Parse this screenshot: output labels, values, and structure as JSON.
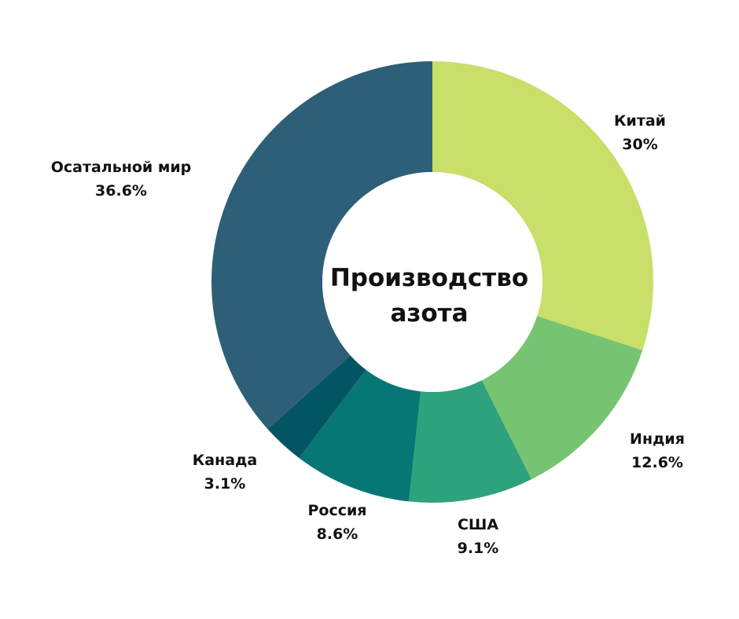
{
  "chart_data": {
    "type": "pie",
    "variant": "donut",
    "center_title": [
      "Производство",
      "азота"
    ],
    "slices": [
      {
        "label": "Китай",
        "value": 30,
        "display": "30%",
        "color": "#c8e06a"
      },
      {
        "label": "Индия",
        "value": 12.6,
        "display": "12.6%",
        "color": "#76c472"
      },
      {
        "label": "США",
        "value": 9.1,
        "display": "9.1%",
        "color": "#2ea27c"
      },
      {
        "label": "Россия",
        "value": 8.6,
        "display": "8.6%",
        "color": "#077775"
      },
      {
        "label": "Канада",
        "value": 3.1,
        "display": "3.1%",
        "color": "#045563"
      },
      {
        "label": "Осатальной мир",
        "value": 36.6,
        "display": "36.6%",
        "color": "#2e5f78"
      }
    ]
  }
}
